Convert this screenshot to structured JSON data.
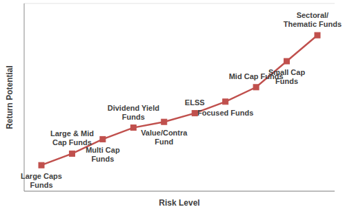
{
  "chart_data": {
    "type": "line",
    "xlabel": "Risk Level",
    "ylabel": "Return Potential",
    "categories": [
      "Large Caps Funds",
      "Large & Mid Cap Funds",
      "Multi Cap Funds",
      "Dividend Yield Funds",
      "Value/Contra Fund",
      "ELSS",
      "Focused Funds",
      "Mid Cap Funds",
      "Small Cap Funds",
      "Sectoral/Thematic Funds"
    ],
    "values": [
      0.9,
      1.3,
      1.8,
      2.2,
      2.4,
      2.7,
      3.1,
      3.6,
      4.5,
      5.4
    ],
    "color": "#c0504d",
    "marker": "square",
    "ylim": [
      0,
      6.5
    ],
    "yticks": [
      0,
      1,
      2,
      3,
      4,
      5,
      6
    ],
    "grid": true,
    "tick_labels": false
  }
}
